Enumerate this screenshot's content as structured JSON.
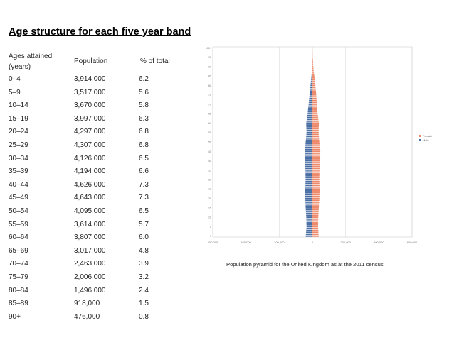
{
  "title": "Age structure for each five year band",
  "table": {
    "headers": {
      "age": "Ages attained (years)",
      "population": "Population",
      "percent": "% of total"
    },
    "rows": [
      {
        "age": "0–4",
        "population": "3,914,000",
        "percent": "6.2"
      },
      {
        "age": "5–9",
        "population": "3,517,000",
        "percent": "5.6"
      },
      {
        "age": "10–14",
        "population": "3,670,000",
        "percent": "5.8"
      },
      {
        "age": "15–19",
        "population": "3,997,000",
        "percent": "6.3"
      },
      {
        "age": "20–24",
        "population": "4,297,000",
        "percent": "6.8"
      },
      {
        "age": "25–29",
        "population": "4,307,000",
        "percent": "6.8"
      },
      {
        "age": "30–34",
        "population": "4,126,000",
        "percent": "6.5"
      },
      {
        "age": "35–39",
        "population": "4,194,000",
        "percent": "6.6"
      },
      {
        "age": "40–44",
        "population": "4,626,000",
        "percent": "7.3"
      },
      {
        "age": "45–49",
        "population": "4,643,000",
        "percent": "7.3"
      },
      {
        "age": "50–54",
        "population": "4,095,000",
        "percent": "6.5"
      },
      {
        "age": "55–59",
        "population": "3,614,000",
        "percent": "5.7"
      },
      {
        "age": "60–64",
        "population": "3,807,000",
        "percent": "6.0"
      },
      {
        "age": "65–69",
        "population": "3,017,000",
        "percent": "4.8"
      },
      {
        "age": "70–74",
        "population": "2,463,000",
        "percent": "3.9"
      },
      {
        "age": "75–79",
        "population": "2,006,000",
        "percent": "3.2"
      },
      {
        "age": "80–84",
        "population": "1,496,000",
        "percent": "2.4"
      },
      {
        "age": "85–89",
        "population": "918,000",
        "percent": "1.5"
      },
      {
        "age": "90+",
        "population": "476,000",
        "percent": "0.8"
      }
    ]
  },
  "caption": "Population pyramid for the United Kingdom as at the 2011 census.",
  "chart_data": {
    "type": "bar",
    "orientation": "horizontal-pyramid",
    "categories": [
      "0",
      "5",
      "10",
      "15",
      "20",
      "25",
      "30",
      "35",
      "40",
      "45",
      "50",
      "55",
      "60",
      "65",
      "70",
      "75",
      "80",
      "85",
      "90",
      "95",
      "100+"
    ],
    "series": [
      {
        "name": "Male",
        "color": "#4a6fa5",
        "values": [
          40000,
          35500,
          37000,
          40500,
          43000,
          43000,
          41000,
          42000,
          45500,
          45500,
          40500,
          35500,
          37500,
          29000,
          23000,
          17500,
          11500,
          5500,
          2000,
          500,
          100
        ]
      },
      {
        "name": "Female",
        "color": "#ee8a6c",
        "values": [
          38000,
          34000,
          35500,
          38500,
          42000,
          43000,
          41500,
          42500,
          47000,
          47500,
          41500,
          37000,
          39000,
          31500,
          27000,
          23000,
          18000,
          11500,
          5500,
          1500,
          300
        ]
      }
    ],
    "xlim": [
      -600000,
      600000
    ],
    "xticks": [
      "600,000",
      "400,000",
      "200,000",
      "0",
      "200,000",
      "400,000",
      "600,000"
    ],
    "grid": true,
    "legend": "right"
  },
  "colors": {
    "male": "#4a6fa5",
    "female": "#ee8a6c"
  }
}
